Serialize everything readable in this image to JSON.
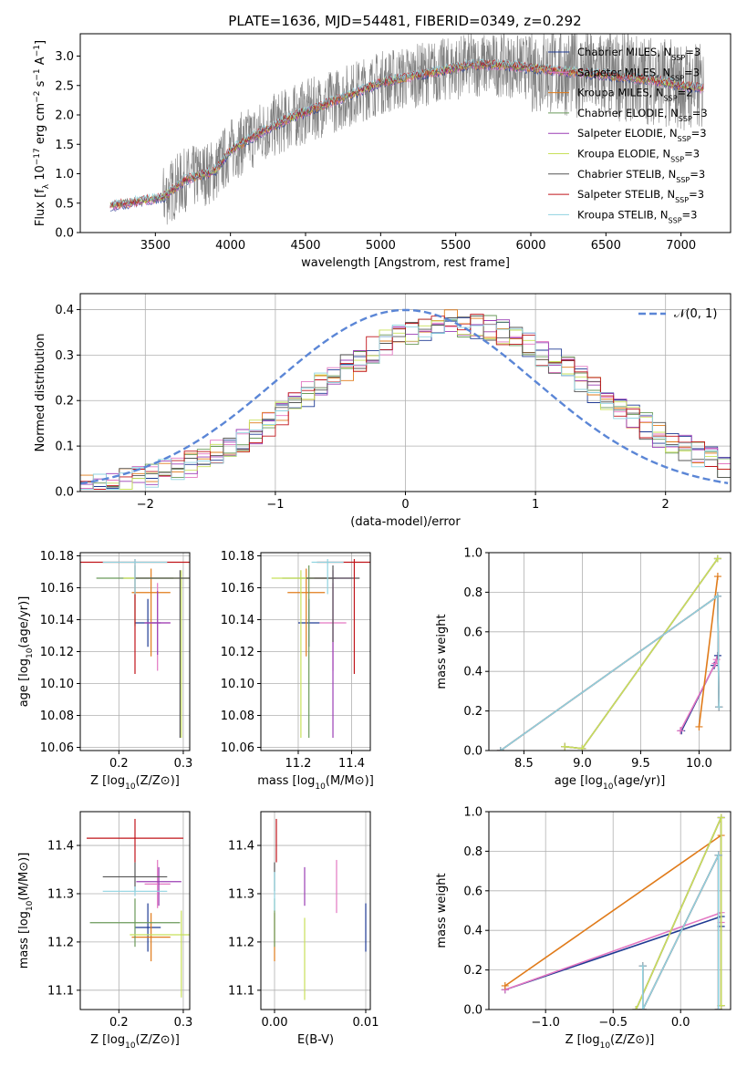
{
  "figure": {
    "title": "PLATE=1636, MJD=54481, FIBERID=0349, z=0.292"
  },
  "series_styles": [
    {
      "name": "Chabrier MILES",
      "nssp": "3",
      "color": "#1f3a93",
      "hex": "#3b4cc0"
    },
    {
      "name": "Salpeter MILES",
      "nssp": "3",
      "color": "#e377c2"
    },
    {
      "name": "Kroupa MILES",
      "nssp": "2",
      "color": "#e07b1a"
    },
    {
      "name": "Chabrier ELODIE",
      "nssp": "3",
      "color": "#6a9a5a"
    },
    {
      "name": "Salpeter ELODIE",
      "nssp": "3",
      "color": "#9b3fb5"
    },
    {
      "name": "Kroupa ELODIE",
      "nssp": "3",
      "color": "#c8e05a"
    },
    {
      "name": "Chabrier STELIB",
      "nssp": "3",
      "color": "#555555"
    },
    {
      "name": "Salpeter STELIB",
      "nssp": "3",
      "color": "#c0141a"
    },
    {
      "name": "Kroupa STELIB",
      "nssp": "3",
      "color": "#8fd3e0"
    }
  ],
  "chart_data": [
    {
      "type": "line",
      "id": "spectrum",
      "title": "PLATE=1636, MJD=54481, FIBERID=0349, z=0.292",
      "xlabel": "wavelength [Angstrom, rest frame]",
      "ylabel": "Flux [f_λ 10^-17 erg cm^-2 s^-1 A^-1]",
      "xlim": [
        3000,
        7330
      ],
      "ylim": [
        0,
        3.38
      ],
      "xticks": [
        3500,
        4000,
        4500,
        5000,
        5500,
        6000,
        6500,
        7000
      ],
      "yticks": [
        0.0,
        0.5,
        1.0,
        1.5,
        2.0,
        2.5,
        3.0
      ],
      "grid": false,
      "legend": "upper right",
      "data_line": {
        "x_start": 3200,
        "x_end": 7150,
        "color": "#808080"
      },
      "continuum": {
        "x": [
          3200,
          3550,
          3700,
          3900,
          4000,
          4200,
          4400,
          4600,
          4800,
          5000,
          5200,
          5400,
          5600,
          5800,
          6000,
          6200,
          6400,
          6600,
          6800,
          7000,
          7150
        ],
        "y": [
          0.45,
          0.6,
          0.9,
          1.05,
          1.4,
          1.7,
          1.95,
          2.15,
          2.35,
          2.55,
          2.65,
          2.75,
          2.85,
          2.85,
          2.8,
          2.75,
          2.7,
          2.65,
          2.6,
          2.5,
          2.45
        ]
      }
    },
    {
      "type": "line",
      "id": "residuals",
      "xlabel": "(data-model)/error",
      "ylabel": "Normed distribution",
      "xlim": [
        -2.5,
        2.5
      ],
      "ylim": [
        0,
        0.435
      ],
      "xticks": [
        -2,
        -1,
        0,
        1,
        2
      ],
      "yticks": [
        0.0,
        0.1,
        0.2,
        0.3,
        0.4
      ],
      "grid": true,
      "legend": "upper right",
      "reference": {
        "name": "N(0,1)",
        "mean": 0,
        "sigma": 1,
        "color": "#5b86d6"
      },
      "histogram_center": {
        "mean": 0.38,
        "sigma": 1.07,
        "peak": 0.37
      }
    },
    {
      "type": "scatter",
      "id": "age-vs-Z",
      "xlabel": "Z [log10(Z/Z⊙)]",
      "ylabel": "age [log10(age/yr)]",
      "xlim": [
        0.14,
        0.31
      ],
      "ylim": [
        10.058,
        10.182
      ],
      "xticks": [
        0.2,
        0.3
      ],
      "yticks": [
        10.06,
        10.08,
        10.1,
        10.12,
        10.14,
        10.16,
        10.18
      ],
      "grid": true,
      "points": [
        {
          "series": "Chabrier MILES",
          "x": 0.245,
          "y": 10.138,
          "xerr": 0.02,
          "yerr": [
            0.015,
            0.015
          ]
        },
        {
          "series": "Salpeter MILES",
          "x": 0.26,
          "y": 10.138,
          "xerr": 0.02,
          "yerr": [
            0.03,
            0.025
          ]
        },
        {
          "series": "Kroupa MILES",
          "x": 0.25,
          "y": 10.157,
          "xerr": 0.03,
          "yerr": [
            0.04,
            0.015
          ]
        },
        {
          "series": "Chabrier ELODIE",
          "x": 0.225,
          "y": 10.166,
          "xerr": 0.06,
          "yerr": [
            0.03,
            0.008
          ]
        },
        {
          "series": "Salpeter ELODIE",
          "x": 0.26,
          "y": 10.138,
          "xerr": 0.02,
          "yerr": [
            0.02,
            0.02
          ]
        },
        {
          "series": "Kroupa ELODIE",
          "x": 0.297,
          "y": 10.166,
          "xerr": 0.09,
          "yerr": [
            0.1,
            0.005
          ]
        },
        {
          "series": "Chabrier STELIB",
          "x": 0.295,
          "y": 10.166,
          "xerr": 0.07,
          "yerr": [
            0.1,
            0.005
          ]
        },
        {
          "series": "Salpeter STELIB",
          "x": 0.225,
          "y": 10.176,
          "xerr": 0.095,
          "yerr": [
            0.07,
            0.002
          ]
        },
        {
          "series": "Kroupa STELIB",
          "x": 0.225,
          "y": 10.176,
          "xerr": 0.05,
          "yerr": [
            0.02,
            0.002
          ]
        }
      ]
    },
    {
      "type": "scatter",
      "id": "age-vs-mass",
      "xlabel": "mass [log10(M/M⊙)]",
      "ylabel": "",
      "xlim": [
        11.06,
        11.47
      ],
      "ylim": [
        10.058,
        10.182
      ],
      "xticks": [
        11.2,
        11.4
      ],
      "yticks": [
        10.06,
        10.08,
        10.1,
        10.12,
        10.14,
        10.16,
        10.18
      ],
      "grid": true,
      "points": [
        {
          "series": "Chabrier MILES",
          "x": 11.24,
          "y": 10.138,
          "xerr": 0.04,
          "yerr": [
            0.015,
            0.015
          ]
        },
        {
          "series": "Salpeter MILES",
          "x": 11.33,
          "y": 10.138,
          "xerr": 0.05,
          "yerr": [
            0.03,
            0.025
          ]
        },
        {
          "series": "Kroupa MILES",
          "x": 11.23,
          "y": 10.157,
          "xerr": 0.07,
          "yerr": [
            0.04,
            0.015
          ]
        },
        {
          "series": "Chabrier ELODIE",
          "x": 11.24,
          "y": 10.166,
          "xerr": 0.1,
          "yerr": [
            0.1,
            0.008
          ]
        },
        {
          "series": "Salpeter ELODIE",
          "x": 11.33,
          "y": 10.166,
          "xerr": 0.07,
          "yerr": [
            0.1,
            0.005
          ]
        },
        {
          "series": "Kroupa ELODIE",
          "x": 11.21,
          "y": 10.166,
          "xerr": 0.11,
          "yerr": [
            0.1,
            0.005
          ]
        },
        {
          "series": "Chabrier STELIB",
          "x": 11.33,
          "y": 10.166,
          "xerr": 0.1,
          "yerr": [
            0.04,
            0.008
          ]
        },
        {
          "series": "Salpeter STELIB",
          "x": 11.41,
          "y": 10.176,
          "xerr": 0.14,
          "yerr": [
            0.07,
            0.002
          ]
        },
        {
          "series": "Kroupa STELIB",
          "x": 11.31,
          "y": 10.176,
          "xerr": 0.06,
          "yerr": [
            0.02,
            0.002
          ]
        }
      ]
    },
    {
      "type": "line",
      "id": "mass-weight-vs-age",
      "xlabel": "age [log10(age/yr)]",
      "ylabel": "mass weight",
      "xlim": [
        8.2,
        10.27
      ],
      "ylim": [
        0,
        1.0
      ],
      "xticks": [
        8.5,
        9.0,
        9.5,
        10.0
      ],
      "yticks": [
        0.0,
        0.2,
        0.4,
        0.6,
        0.8,
        1.0
      ],
      "grid": true,
      "lines": [
        {
          "series": "Chabrier MILES",
          "x": [
            9.85,
            10.13,
            10.16
          ],
          "y": [
            0.1,
            0.43,
            0.48
          ]
        },
        {
          "series": "Salpeter MILES",
          "x": [
            9.84,
            10.14,
            10.15
          ],
          "y": [
            0.1,
            0.44,
            0.46
          ]
        },
        {
          "series": "Kroupa MILES",
          "x": [
            10.0,
            10.16
          ],
          "y": [
            0.12,
            0.88
          ]
        },
        {
          "series": "Chabrier ELODIE",
          "x": [
            8.85,
            9.0,
            10.16
          ],
          "y": [
            0.02,
            0.01,
            0.97
          ]
        },
        {
          "series": "Salpeter ELODIE",
          "x": [
            8.85,
            9.0,
            10.16
          ],
          "y": [
            0.02,
            0.01,
            0.97
          ]
        },
        {
          "series": "Kroupa ELODIE",
          "x": [
            8.85,
            9.0,
            10.16
          ],
          "y": [
            0.02,
            0.01,
            0.97
          ]
        },
        {
          "series": "Chabrier STELIB",
          "x": [
            8.3,
            10.16,
            10.17
          ],
          "y": [
            0.0,
            0.78,
            0.22
          ]
        },
        {
          "series": "Salpeter STELIB",
          "x": [
            8.3,
            10.16,
            10.17
          ],
          "y": [
            0.0,
            0.78,
            0.22
          ]
        },
        {
          "series": "Kroupa STELIB",
          "x": [
            8.3,
            10.16,
            10.17
          ],
          "y": [
            0.0,
            0.78,
            0.22
          ]
        }
      ]
    },
    {
      "type": "scatter",
      "id": "mass-vs-Z",
      "xlabel": "Z [log10(Z/Z⊙)]",
      "ylabel": "mass [log10(M/M⊙)]",
      "xlim": [
        0.14,
        0.31
      ],
      "ylim": [
        11.06,
        11.47
      ],
      "xticks": [
        0.2,
        0.3
      ],
      "yticks": [
        11.1,
        11.2,
        11.3,
        11.4
      ],
      "grid": true,
      "points": [
        {
          "series": "Chabrier MILES",
          "x": 0.245,
          "y": 11.23,
          "xerr": 0.02,
          "yerr": [
            0.05,
            0.05
          ]
        },
        {
          "series": "Salpeter MILES",
          "x": 0.26,
          "y": 11.32,
          "xerr": 0.02,
          "yerr": [
            0.05,
            0.05
          ]
        },
        {
          "series": "Kroupa MILES",
          "x": 0.25,
          "y": 11.21,
          "xerr": 0.03,
          "yerr": [
            0.05,
            0.05
          ]
        },
        {
          "series": "Chabrier ELODIE",
          "x": 0.225,
          "y": 11.24,
          "xerr": 0.07,
          "yerr": [
            0.05,
            0.05
          ]
        },
        {
          "series": "Salpeter ELODIE",
          "x": 0.262,
          "y": 11.325,
          "xerr": 0.035,
          "yerr": [
            0.05,
            0.03
          ]
        },
        {
          "series": "Kroupa ELODIE",
          "x": 0.297,
          "y": 11.215,
          "xerr": 0.08,
          "yerr": [
            0.13,
            0.05
          ]
        },
        {
          "series": "Chabrier STELIB",
          "x": 0.225,
          "y": 11.335,
          "xerr": 0.05,
          "yerr": [
            0.03,
            0.03
          ]
        },
        {
          "series": "Salpeter STELIB",
          "x": 0.225,
          "y": 11.415,
          "xerr": 0.075,
          "yerr": [
            0.05,
            0.04
          ]
        },
        {
          "series": "Kroupa STELIB",
          "x": 0.225,
          "y": 11.305,
          "xerr": 0.05,
          "yerr": [
            0.01,
            0.01
          ]
        }
      ]
    },
    {
      "type": "scatter",
      "id": "mass-vs-ebv",
      "xlabel": "E(B-V)",
      "ylabel": "",
      "xlim": [
        -0.0015,
        0.0105
      ],
      "ylim": [
        11.06,
        11.47
      ],
      "xticks": [
        0.0,
        0.01
      ],
      "yticks": [
        11.1,
        11.2,
        11.3,
        11.4
      ],
      "grid": true,
      "points": [
        {
          "series": "Chabrier MILES",
          "x": 0.01,
          "y": 11.23,
          "yerr": [
            0.05,
            0.05
          ]
        },
        {
          "series": "Salpeter MILES",
          "x": 0.0068,
          "y": 11.32,
          "yerr": [
            0.06,
            0.05
          ]
        },
        {
          "series": "Kroupa MILES",
          "x": 0.0,
          "y": 11.21,
          "yerr": [
            0.05,
            0.05
          ]
        },
        {
          "series": "Chabrier ELODIE",
          "x": 0.0,
          "y": 11.24,
          "yerr": [
            0.05,
            0.05
          ]
        },
        {
          "series": "Salpeter ELODIE",
          "x": 0.0033,
          "y": 11.325,
          "yerr": [
            0.05,
            0.03
          ]
        },
        {
          "series": "Kroupa ELODIE",
          "x": 0.0033,
          "y": 11.18,
          "yerr": [
            0.1,
            0.07
          ]
        },
        {
          "series": "Chabrier STELIB",
          "x": 0.0,
          "y": 11.335,
          "yerr": [
            0.03,
            0.03
          ]
        },
        {
          "series": "Salpeter STELIB",
          "x": 0.0002,
          "y": 11.415,
          "yerr": [
            0.05,
            0.04
          ]
        },
        {
          "series": "Kroupa STELIB",
          "x": 0.0,
          "y": 11.305,
          "yerr": [
            0.04,
            0.04
          ]
        }
      ]
    },
    {
      "type": "line",
      "id": "mass-weight-vs-Z",
      "xlabel": "Z [log10(Z/Z⊙)]",
      "ylabel": "mass weight",
      "xlim": [
        -1.42,
        0.37
      ],
      "ylim": [
        0,
        1.0
      ],
      "xticks": [
        -1.0,
        -0.5,
        0.0
      ],
      "yticks": [
        0.0,
        0.2,
        0.4,
        0.6,
        0.8,
        1.0
      ],
      "grid": true,
      "lines": [
        {
          "series": "Chabrier MILES",
          "x": [
            -1.3,
            0.3,
            0.3
          ],
          "y": [
            0.1,
            0.47,
            0.42
          ]
        },
        {
          "series": "Salpeter MILES",
          "x": [
            -1.3,
            0.3,
            0.3
          ],
          "y": [
            0.1,
            0.49,
            0.44
          ]
        },
        {
          "series": "Kroupa MILES",
          "x": [
            -1.3,
            0.3
          ],
          "y": [
            0.12,
            0.88
          ]
        },
        {
          "series": "Chabrier ELODIE",
          "x": [
            -0.33,
            0.3,
            0.3
          ],
          "y": [
            0.0,
            0.97,
            0.02
          ]
        },
        {
          "series": "Salpeter ELODIE",
          "x": [
            -0.33,
            0.3,
            0.3
          ],
          "y": [
            0.0,
            0.97,
            0.02
          ]
        },
        {
          "series": "Kroupa ELODIE",
          "x": [
            -0.33,
            0.3,
            0.3
          ],
          "y": [
            0.0,
            0.97,
            0.02
          ]
        },
        {
          "series": "Chabrier STELIB",
          "x": [
            -0.28,
            -0.28,
            0.28,
            0.28
          ],
          "y": [
            0.22,
            0.0,
            0.78,
            0.0
          ]
        },
        {
          "series": "Salpeter STELIB",
          "x": [
            -0.28,
            -0.28,
            0.28,
            0.28
          ],
          "y": [
            0.22,
            0.0,
            0.78,
            0.0
          ]
        },
        {
          "series": "Kroupa STELIB",
          "x": [
            -0.28,
            -0.28,
            0.28,
            0.28
          ],
          "y": [
            0.22,
            0.0,
            0.78,
            0.0
          ]
        }
      ]
    }
  ],
  "legends": {
    "spectrum": [
      {
        "label": "Chabrier MILES, N",
        "sub": "SSP",
        "tail": "=3"
      },
      {
        "label": "Salpeter MILES, N",
        "sub": "SSP",
        "tail": "=3"
      },
      {
        "label": "Kroupa MILES, N",
        "sub": "SSP",
        "tail": "=2"
      },
      {
        "label": "Chabrier ELODIE, N",
        "sub": "SSP",
        "tail": "=3"
      },
      {
        "label": "Salpeter ELODIE, N",
        "sub": "SSP",
        "tail": "=3"
      },
      {
        "label": "Kroupa ELODIE, N",
        "sub": "SSP",
        "tail": "=3"
      },
      {
        "label": "Chabrier STELIB, N",
        "sub": "SSP",
        "tail": "=3"
      },
      {
        "label": "Salpeter STELIB, N",
        "sub": "SSP",
        "tail": "=3"
      },
      {
        "label": "Kroupa STELIB, N",
        "sub": "SSP",
        "tail": "=3"
      }
    ],
    "residuals": "𝒩(0, 1)"
  }
}
